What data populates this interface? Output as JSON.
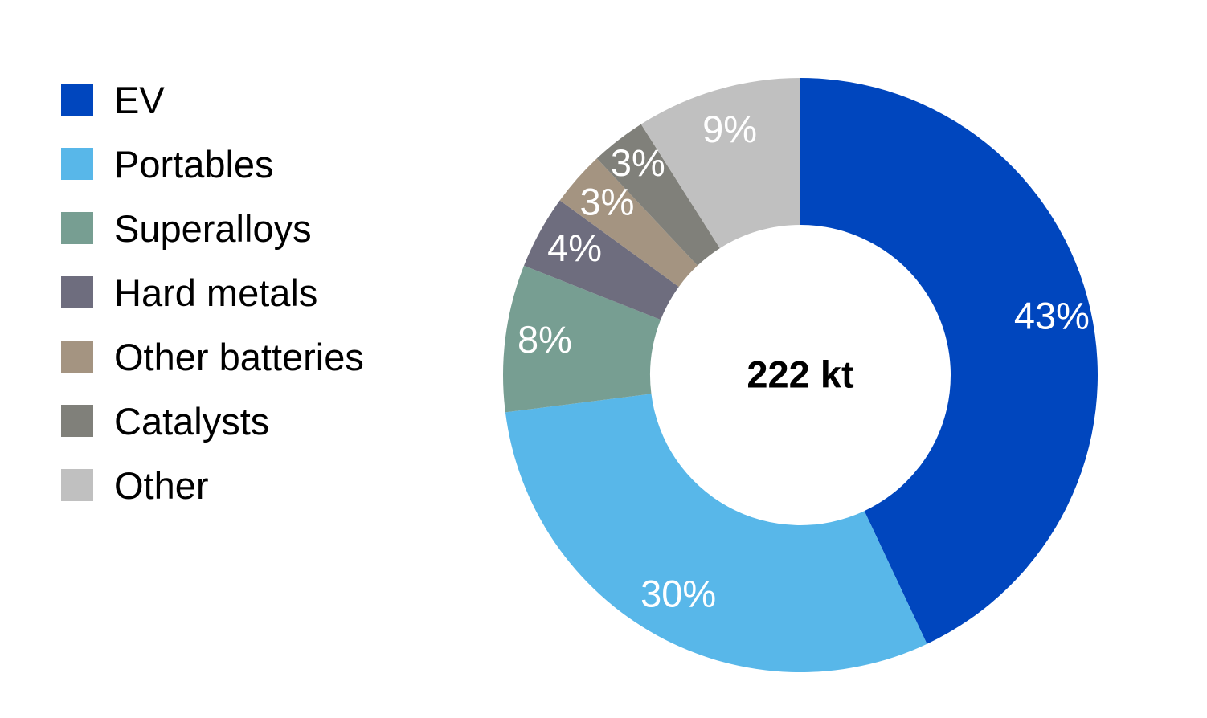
{
  "chart_data": {
    "type": "pie",
    "variant": "donut",
    "center_label": "222 kt",
    "legend_position": "left",
    "slices": [
      {
        "name": "EV",
        "value": 43,
        "label": "43%",
        "color": "#0046BE"
      },
      {
        "name": "Portables",
        "value": 30,
        "label": "30%",
        "color": "#58B7E9"
      },
      {
        "name": "Superalloys",
        "value": 8,
        "label": "8%",
        "color": "#779E92"
      },
      {
        "name": "Hard metals",
        "value": 4,
        "label": "4%",
        "color": "#6E6D7E"
      },
      {
        "name": "Other batteries",
        "value": 3,
        "label": "3%",
        "color": "#A49481"
      },
      {
        "name": "Catalysts",
        "value": 3,
        "label": "3%",
        "color": "#80807A"
      },
      {
        "name": "Other",
        "value": 9,
        "label": "9%",
        "color": "#C0C0C0"
      }
    ]
  }
}
